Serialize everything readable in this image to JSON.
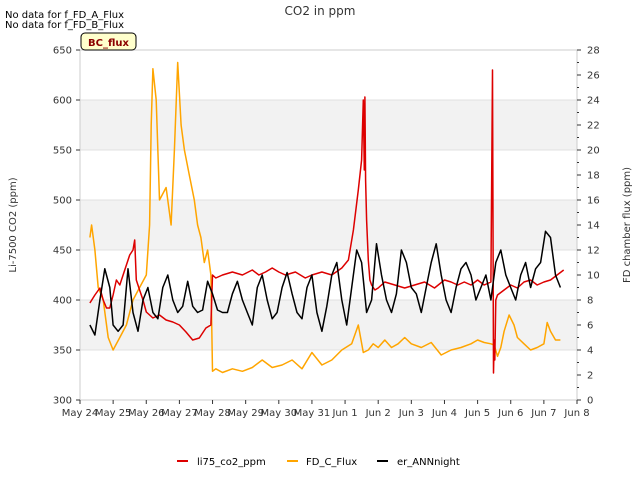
{
  "chart_data": {
    "type": "line",
    "title": "CO2 in ppm",
    "ylabel": "Li-7500 CO2 (ppm)",
    "y2label": "FD chamber flux (ppm)",
    "ylim": [
      300,
      650
    ],
    "y2lim": [
      0,
      28
    ],
    "yticks": [
      "300",
      "350",
      "400",
      "450",
      "500",
      "550",
      "600",
      "650"
    ],
    "y2ticks": [
      "0",
      "2",
      "4",
      "6",
      "8",
      "10",
      "12",
      "14",
      "16",
      "18",
      "20",
      "22",
      "24",
      "26",
      "28"
    ],
    "xlim": [
      0,
      15
    ],
    "xticks": [
      "May 24",
      "May 25",
      "May 26",
      "May 27",
      "May 28",
      "May 29",
      "May 30",
      "May 31",
      "Jun 1",
      "Jun 2",
      "Jun 3",
      "Jun 4",
      "Jun 5",
      "Jun 6",
      "Jun 7",
      "Jun 8"
    ],
    "notes": [
      "No data for f_FD_A_Flux",
      "No data for f_FD_B_Flux"
    ],
    "badge": "BC_flux",
    "legend": [
      "li75_co2_ppm",
      "FD_C_Flux",
      "er_ANNnight"
    ],
    "series": [
      {
        "name": "li75_co2_ppm",
        "axis": "left",
        "color": "#dd0000",
        "x": [
          0.3,
          0.45,
          0.6,
          0.7,
          0.8,
          0.9,
          1.0,
          1.1,
          1.2,
          1.3,
          1.4,
          1.5,
          1.6,
          1.65,
          1.7,
          1.8,
          1.9,
          2.0,
          2.2,
          2.4,
          2.6,
          2.8,
          3.0,
          3.2,
          3.4,
          3.6,
          3.8,
          3.95,
          4.0,
          4.1,
          4.3,
          4.6,
          4.9,
          5.2,
          5.4,
          5.6,
          5.8,
          6.0,
          6.2,
          6.5,
          6.8,
          7.0,
          7.3,
          7.6,
          7.9,
          8.1,
          8.25,
          8.4,
          8.5,
          8.55,
          8.58,
          8.6,
          8.62,
          8.65,
          8.7,
          8.75,
          8.8,
          8.9,
          9.0,
          9.2,
          9.5,
          9.8,
          10.1,
          10.4,
          10.7,
          11.0,
          11.2,
          11.4,
          11.6,
          11.8,
          12.0,
          12.2,
          12.4,
          12.45,
          12.48,
          12.5,
          12.52,
          12.55,
          12.6,
          12.8,
          13.0,
          13.2,
          13.4,
          13.6,
          13.8,
          14.0,
          14.2,
          14.4,
          14.6
        ],
        "values": [
          397,
          405,
          412,
          400,
          392,
          392,
          405,
          420,
          415,
          425,
          435,
          445,
          450,
          460,
          420,
          410,
          400,
          388,
          382,
          385,
          380,
          378,
          375,
          368,
          360,
          362,
          372,
          375,
          425,
          422,
          425,
          428,
          425,
          430,
          425,
          428,
          432,
          428,
          425,
          428,
          422,
          425,
          428,
          425,
          432,
          440,
          470,
          510,
          540,
          600,
          530,
          603,
          520,
          480,
          440,
          420,
          415,
          410,
          412,
          418,
          415,
          412,
          415,
          418,
          412,
          420,
          418,
          415,
          418,
          415,
          420,
          415,
          418,
          630,
          327,
          360,
          340,
          400,
          405,
          410,
          415,
          412,
          418,
          420,
          415,
          418,
          420,
          425,
          430
        ]
      },
      {
        "name": "FD_C_Flux",
        "axis": "right",
        "color": "#ffa500",
        "x": [
          0.3,
          0.35,
          0.45,
          0.55,
          0.7,
          0.85,
          1.0,
          1.2,
          1.4,
          1.6,
          1.8,
          2.0,
          2.1,
          2.15,
          2.2,
          2.3,
          2.4,
          2.6,
          2.75,
          2.85,
          2.95,
          3.05,
          3.15,
          3.3,
          3.45,
          3.55,
          3.65,
          3.75,
          3.85,
          3.95,
          4.0,
          4.1,
          4.3,
          4.6,
          4.9,
          5.2,
          5.5,
          5.8,
          6.1,
          6.4,
          6.7,
          7.0,
          7.3,
          7.6,
          7.9,
          8.2,
          8.4,
          8.55,
          8.7,
          8.85,
          9.0,
          9.2,
          9.4,
          9.6,
          9.8,
          10.0,
          10.3,
          10.6,
          10.9,
          11.2,
          11.5,
          11.8,
          12.0,
          12.2,
          12.4,
          12.5,
          12.6,
          12.7,
          12.8,
          12.95,
          13.1,
          13.2,
          13.4,
          13.6,
          13.8,
          14.0,
          14.1,
          14.2,
          14.35,
          14.5
        ],
        "values": [
          13,
          14,
          12,
          9,
          8,
          5,
          4,
          5,
          6,
          8,
          9,
          10,
          14,
          22,
          26.5,
          24,
          16,
          17,
          14,
          20,
          27,
          22,
          20,
          18,
          16,
          14,
          13,
          11,
          12,
          10,
          2.3,
          2.5,
          2.2,
          2.5,
          2.3,
          2.6,
          3.2,
          2.6,
          2.8,
          3.2,
          2.5,
          3.8,
          2.8,
          3.2,
          4.0,
          4.5,
          6.0,
          3.8,
          4.0,
          4.5,
          4.2,
          4.8,
          4.2,
          4.5,
          5.0,
          4.5,
          4.2,
          4.6,
          3.6,
          4.0,
          4.2,
          4.5,
          4.8,
          4.6,
          4.5,
          4.4,
          3.5,
          4.2,
          5.5,
          6.8,
          6.0,
          5.0,
          4.5,
          4.0,
          4.2,
          4.5,
          6.2,
          5.5,
          4.8,
          4.8
        ]
      },
      {
        "name": "er_ANNnight",
        "axis": "right",
        "color": "#000000",
        "x": [
          0.3,
          0.45,
          0.6,
          0.75,
          0.9,
          1.0,
          1.15,
          1.3,
          1.45,
          1.6,
          1.75,
          1.9,
          2.05,
          2.2,
          2.35,
          2.5,
          2.65,
          2.8,
          2.95,
          3.1,
          3.25,
          3.4,
          3.55,
          3.7,
          3.85,
          4.0,
          4.15,
          4.3,
          4.45,
          4.6,
          4.75,
          4.9,
          5.05,
          5.2,
          5.35,
          5.5,
          5.65,
          5.8,
          5.95,
          6.1,
          6.25,
          6.4,
          6.55,
          6.7,
          6.85,
          7.0,
          7.15,
          7.3,
          7.45,
          7.6,
          7.75,
          7.9,
          8.05,
          8.2,
          8.35,
          8.5,
          8.65,
          8.8,
          8.95,
          9.1,
          9.25,
          9.4,
          9.55,
          9.7,
          9.85,
          10.0,
          10.15,
          10.3,
          10.45,
          10.6,
          10.75,
          10.9,
          11.05,
          11.2,
          11.35,
          11.5,
          11.65,
          11.8,
          11.95,
          12.1,
          12.25,
          12.4,
          12.55,
          12.7,
          12.85,
          13.0,
          13.15,
          13.3,
          13.45,
          13.6,
          13.75,
          13.9,
          14.05,
          14.2,
          14.35,
          14.5
        ],
        "values": [
          6,
          5.2,
          8,
          10.5,
          9,
          6,
          5.5,
          6,
          10.5,
          7,
          5.5,
          8,
          9,
          7,
          6.5,
          9,
          10,
          8,
          7,
          7.5,
          9.5,
          7.5,
          7,
          7.2,
          9.5,
          8.5,
          7.2,
          7,
          7,
          8.5,
          9.5,
          8,
          7,
          6,
          9,
          10,
          8,
          6.5,
          7,
          9,
          10.2,
          8.5,
          7,
          6.5,
          9,
          10,
          7,
          5.5,
          7.5,
          10,
          11,
          8,
          6,
          9,
          12,
          11,
          7,
          8,
          12.5,
          10,
          8,
          7,
          8.5,
          12,
          11,
          9,
          8.5,
          7,
          9,
          11,
          12.5,
          10,
          8,
          7,
          9,
          10.5,
          11,
          10,
          8,
          9,
          10,
          8,
          11,
          12,
          10,
          9,
          8,
          10,
          11,
          9,
          10.5,
          11,
          13.5,
          13,
          10,
          9
        ]
      }
    ]
  }
}
